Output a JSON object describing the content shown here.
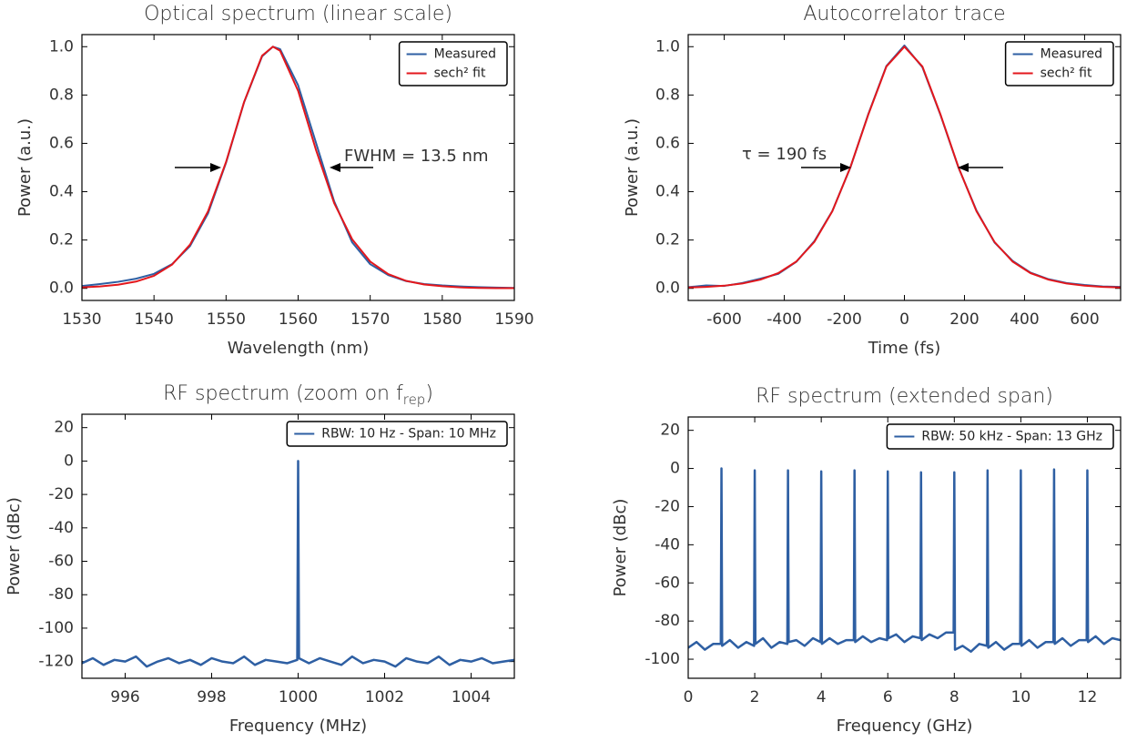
{
  "chart_data": [
    {
      "type": "line",
      "title": "Optical spectrum (linear scale)",
      "xlabel": "Wavelength (nm)",
      "ylabel": "Power (a.u.)",
      "x": [
        1530,
        1532.5,
        1535,
        1537.5,
        1540,
        1542.5,
        1545,
        1547.5,
        1550,
        1552.5,
        1555,
        1556.5,
        1557.5,
        1560,
        1562.5,
        1565,
        1567.5,
        1570,
        1572.5,
        1575,
        1577.5,
        1580,
        1582.5,
        1585,
        1587.5,
        1590
      ],
      "series": [
        {
          "name": "Measured",
          "color": "#2e5fa3",
          "values": [
            0.01,
            0.018,
            0.027,
            0.04,
            0.06,
            0.1,
            0.175,
            0.31,
            0.52,
            0.77,
            0.96,
            1.0,
            0.99,
            0.84,
            0.6,
            0.36,
            0.19,
            0.1,
            0.055,
            0.03,
            0.018,
            0.012,
            0.008,
            0.005,
            0.003,
            0.002
          ]
        },
        {
          "name": "sech² fit",
          "color": "#e3171c",
          "values": [
            0.004,
            0.008,
            0.015,
            0.028,
            0.052,
            0.098,
            0.181,
            0.319,
            0.523,
            0.771,
            0.963,
            1.0,
            0.983,
            0.817,
            0.571,
            0.353,
            0.203,
            0.111,
            0.059,
            0.031,
            0.016,
            0.009,
            0.004,
            0.002,
            0.001,
            0.001
          ]
        }
      ],
      "xlim": [
        1530,
        1590
      ],
      "ylim": [
        -0.05,
        1.05
      ],
      "xticks": [
        1530,
        1540,
        1550,
        1560,
        1570,
        1580,
        1590
      ],
      "yticks": [
        {
          "value": 0,
          "label": "0.0"
        },
        0.2,
        0.4,
        0.6,
        0.8,
        {
          "value": 1,
          "label": "1.0"
        }
      ],
      "legend": "upper right",
      "annotation": "FWHM = 13.5 nm"
    },
    {
      "type": "line",
      "title": "Autocorrelator trace",
      "xlabel": "Time (fs)",
      "ylabel": "Power (a.u.)",
      "x": [
        -720,
        -660,
        -600,
        -540,
        -480,
        -420,
        -360,
        -300,
        -240,
        -180,
        -120,
        -60,
        0,
        60,
        120,
        180,
        240,
        300,
        360,
        420,
        480,
        540,
        600,
        660,
        720
      ],
      "series": [
        {
          "name": "Measured",
          "color": "#2e5fa3",
          "values": [
            0.005,
            0.012,
            0.01,
            0.022,
            0.04,
            0.06,
            0.11,
            0.195,
            0.32,
            0.5,
            0.722,
            0.92,
            1.005,
            0.915,
            0.718,
            0.5,
            0.322,
            0.19,
            0.114,
            0.065,
            0.038,
            0.022,
            0.014,
            0.008,
            0.006
          ]
        },
        {
          "name": "sech² fit",
          "color": "#e3171c",
          "values": [
            0.0035,
            0.0062,
            0.011,
            0.02,
            0.036,
            0.063,
            0.111,
            0.192,
            0.319,
            0.501,
            0.72,
            0.918,
            1.0,
            0.918,
            0.72,
            0.501,
            0.319,
            0.192,
            0.111,
            0.063,
            0.036,
            0.02,
            0.011,
            0.0062,
            0.0035
          ]
        }
      ],
      "xlim": [
        -720,
        720
      ],
      "ylim": [
        -0.05,
        1.05
      ],
      "xticks": [
        -600,
        -400,
        -200,
        0,
        200,
        400,
        600
      ],
      "yticks": [
        {
          "value": 0,
          "label": "0.0"
        },
        0.2,
        0.4,
        0.6,
        0.8,
        {
          "value": 1,
          "label": "1.0"
        }
      ],
      "legend": "upper right",
      "annotation": "τ = 190 fs"
    },
    {
      "type": "line",
      "title": "RF spectrum (zoom on f",
      "title_subscript": "rep",
      "title_suffix": ")",
      "xlabel": "Frequency (MHz)",
      "ylabel": "Power (dBc)",
      "x": [
        995,
        995.25,
        995.5,
        995.75,
        996,
        996.25,
        996.5,
        996.75,
        997,
        997.25,
        997.5,
        997.75,
        998,
        998.25,
        998.5,
        998.75,
        999,
        999.25,
        999.5,
        999.75,
        999.98,
        1000,
        1000.02,
        1000.25,
        1000.5,
        1000.75,
        1001,
        1001.25,
        1001.5,
        1001.75,
        1002,
        1002.25,
        1002.5,
        1002.75,
        1003,
        1003.25,
        1003.5,
        1003.75,
        1004,
        1004.25,
        1004.5,
        1004.75,
        1005
      ],
      "series": [
        {
          "name": "RBW: 10 Hz - Span: 10 MHz",
          "color": "#2e5fa3",
          "values": [
            -121,
            -118,
            -122,
            -119,
            -120,
            -117,
            -123,
            -120,
            -118,
            -121,
            -119,
            -122,
            -118,
            -120,
            -121,
            -117,
            -122,
            -119,
            -120,
            -121,
            -119,
            0,
            -118,
            -121,
            -118,
            -120,
            -122,
            -117,
            -121,
            -119,
            -120,
            -123,
            -118,
            -120,
            -121,
            -117,
            -122,
            -119,
            -120,
            -118,
            -121,
            -120,
            -119
          ]
        }
      ],
      "xlim": [
        995,
        1005
      ],
      "ylim": [
        -130,
        28
      ],
      "xticks": [
        996,
        998,
        1000,
        1002,
        1004
      ],
      "yticks": [
        20,
        0,
        -20,
        -40,
        -60,
        -80,
        -100,
        -120
      ],
      "legend": "upper right"
    },
    {
      "type": "line",
      "title": "RF spectrum (extended span)",
      "xlabel": "Frequency (GHz)",
      "ylabel": "Power (dBc)",
      "x": [
        0,
        0.25,
        0.5,
        0.75,
        0.98,
        1,
        1.02,
        1.25,
        1.5,
        1.75,
        1.98,
        2,
        2.02,
        2.25,
        2.5,
        2.75,
        2.98,
        3,
        3.02,
        3.25,
        3.5,
        3.75,
        3.98,
        4,
        4.02,
        4.25,
        4.5,
        4.75,
        4.98,
        5,
        5.02,
        5.25,
        5.5,
        5.75,
        5.98,
        6,
        6.02,
        6.25,
        6.5,
        6.75,
        6.98,
        7,
        7.02,
        7.25,
        7.5,
        7.75,
        7.98,
        8,
        8.02,
        8.25,
        8.5,
        8.75,
        8.98,
        9,
        9.02,
        9.25,
        9.5,
        9.75,
        9.98,
        10,
        10.02,
        10.25,
        10.5,
        10.75,
        10.98,
        11,
        11.02,
        11.25,
        11.5,
        11.75,
        11.98,
        12,
        12.02,
        12.25,
        12.5,
        12.75,
        13
      ],
      "series": [
        {
          "name": "RBW: 50 kHz - Span: 13 GHz",
          "color": "#2e5fa3",
          "values": [
            -94,
            -91,
            -95,
            -92,
            -92,
            0,
            -93,
            -90,
            -94,
            -91,
            -93,
            -1,
            -92,
            -89,
            -94,
            -91,
            -92,
            -1,
            -91,
            -90,
            -93,
            -89,
            -91,
            -1.5,
            -92,
            -89,
            -92,
            -90,
            -90,
            -1,
            -91,
            -88,
            -91,
            -89,
            -90,
            -1.5,
            -89,
            -87,
            -91,
            -88,
            -89,
            -2,
            -90,
            -87,
            -89,
            -86,
            -86,
            -2,
            -95,
            -93,
            -96,
            -92,
            -93,
            -1,
            -94,
            -91,
            -95,
            -92,
            -92,
            -1,
            -93,
            -90,
            -94,
            -91,
            -91,
            -0.5,
            -92,
            -89,
            -93,
            -90,
            -90,
            -1,
            -91,
            -88,
            -92,
            -89,
            -90
          ]
        }
      ],
      "xlim": [
        0,
        13
      ],
      "ylim": [
        -110,
        27
      ],
      "xticks": [
        0,
        2,
        4,
        6,
        8,
        10,
        12
      ],
      "yticks": [
        20,
        0,
        -20,
        -40,
        -60,
        -80,
        -100
      ],
      "legend": "upper right"
    }
  ]
}
